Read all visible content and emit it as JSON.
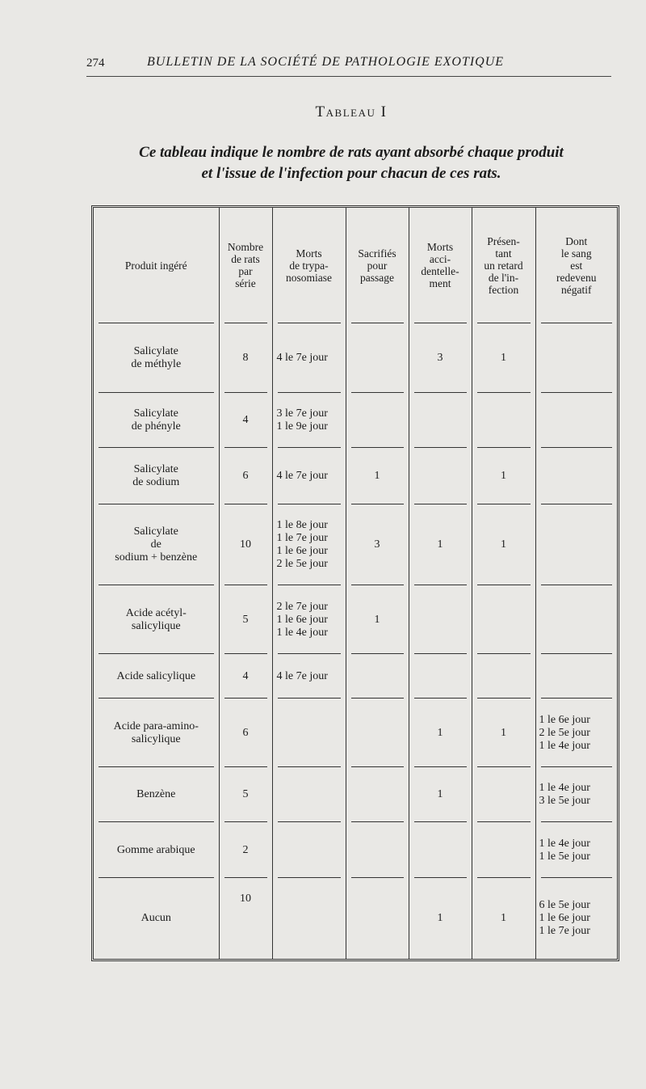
{
  "running_head": {
    "page_number": "274",
    "journal": "BULLETIN DE LA SOCIÉTÉ DE PATHOLOGIE EXOTIQUE"
  },
  "title": "Tableau I",
  "caption": "Ce tableau indique le nombre de rats ayant absorbé chaque produit\net l'issue de l'infection pour chacun de ces rats.",
  "table": {
    "headers": [
      "Produit ingéré",
      "Nombre\nde rats\npar\nsérie",
      "Morts\nde trypa-\nnosomiase",
      "Sacrifiés\npour\npassage",
      "Morts\nacci-\ndentelle-\nment",
      "Présen-\ntant\nun retard\nde l'in-\nfection",
      "Dont\nle sang\nest\nredevenu\nnégatif"
    ],
    "rows": [
      {
        "product": "Salicylate\nde méthyle",
        "count": "8",
        "trypano": "4 le 7e jour",
        "sacrificed": "",
        "accidental": "3",
        "delayed": "1",
        "negative": ""
      },
      {
        "product": "Salicylate\nde phényle",
        "count": "4",
        "trypano": "3 le 7e jour\n1 le 9e jour",
        "sacrificed": "",
        "accidental": "",
        "delayed": "",
        "negative": ""
      },
      {
        "product": "Salicylate\nde sodium",
        "count": "6",
        "trypano": "4 le 7e jour",
        "sacrificed": "1",
        "accidental": "",
        "delayed": "1",
        "negative": ""
      },
      {
        "product": "Salicylate\nde\nsodium + benzène",
        "count": "10",
        "trypano": "1 le 8e jour\n1 le 7e jour\n1 le 6e jour\n2 le 5e jour",
        "sacrificed": "3",
        "accidental": "1",
        "delayed": "1",
        "negative": ""
      },
      {
        "product": "Acide acétyl-\nsalicylique",
        "count": "5",
        "trypano": "2 le 7e jour\n1 le 6e jour\n1 le 4e jour",
        "sacrificed": "1",
        "accidental": "",
        "delayed": "",
        "negative": ""
      },
      {
        "product": "Acide salicylique",
        "count": "4",
        "trypano": "4 le 7e jour",
        "sacrificed": "",
        "accidental": "",
        "delayed": "",
        "negative": ""
      },
      {
        "product": "Acide para-amino-\nsalicylique",
        "count": "6",
        "trypano": "",
        "sacrificed": "",
        "accidental": "1",
        "delayed": "1",
        "negative": "1 le 6e jour\n2 le 5e jour\n1 le 4e jour"
      },
      {
        "product": "Benzène",
        "count": "5",
        "trypano": "",
        "sacrificed": "",
        "accidental": "1",
        "delayed": "",
        "negative": "1 le 4e jour\n3 le 5e jour"
      },
      {
        "product": "Gomme arabique",
        "count": "2",
        "trypano": "",
        "sacrificed": "",
        "accidental": "",
        "delayed": "",
        "negative": "1 le 4e jour\n1 le 5e jour"
      },
      {
        "product": "Aucun",
        "count": "10",
        "trypano": "",
        "sacrificed": "",
        "accidental": "1",
        "delayed": "1",
        "negative": "6 le 5e jour\n1 le 6e jour\n1 le 7e jour"
      }
    ]
  }
}
